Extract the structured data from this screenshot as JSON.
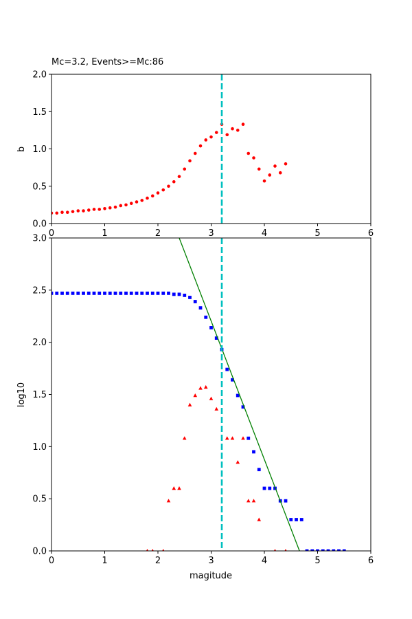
{
  "chart_data": [
    {
      "type": "scatter",
      "title": "Mc=3.2, Events>=Mc:86",
      "xlabel": "",
      "ylabel": "b",
      "xlim": [
        0,
        6
      ],
      "ylim": [
        0,
        2
      ],
      "xticks": [
        "0",
        "1",
        "2",
        "3",
        "4",
        "5",
        "6"
      ],
      "yticks": [
        "0.0",
        "0.5",
        "1.0",
        "1.5",
        "2.0"
      ],
      "series": [
        {
          "color": "#ff0000",
          "marker": "circle",
          "x": [
            0.0,
            0.1,
            0.2,
            0.3,
            0.4,
            0.5,
            0.6,
            0.7,
            0.8,
            0.9,
            1.0,
            1.1,
            1.2,
            1.3,
            1.4,
            1.5,
            1.6,
            1.7,
            1.8,
            1.9,
            2.0,
            2.1,
            2.2,
            2.3,
            2.4,
            2.5,
            2.6,
            2.7,
            2.8,
            2.9,
            3.0,
            3.1,
            3.2,
            3.3,
            3.4,
            3.5,
            3.6,
            3.7,
            3.8,
            3.9,
            4.0,
            4.1,
            4.2,
            4.3,
            4.4
          ],
          "y": [
            0.14,
            0.14,
            0.15,
            0.15,
            0.16,
            0.17,
            0.17,
            0.18,
            0.19,
            0.19,
            0.2,
            0.21,
            0.22,
            0.24,
            0.25,
            0.27,
            0.29,
            0.31,
            0.34,
            0.37,
            0.41,
            0.45,
            0.5,
            0.56,
            0.63,
            0.73,
            0.84,
            0.94,
            1.04,
            1.12,
            1.16,
            1.22,
            1.33,
            1.19,
            1.27,
            1.25,
            1.33,
            0.94,
            0.88,
            0.73,
            0.57,
            0.65,
            0.77,
            0.68,
            0.8
          ]
        }
      ],
      "vline": {
        "x": 3.2,
        "color": "#00bfbf"
      }
    },
    {
      "type": "scatter",
      "title": "",
      "xlabel": "magitude",
      "ylabel": "log10",
      "xlim": [
        0,
        6
      ],
      "ylim": [
        0,
        3
      ],
      "xticks": [
        "0",
        "1",
        "2",
        "3",
        "4",
        "5",
        "6"
      ],
      "yticks": [
        "0.0",
        "0.5",
        "1.0",
        "1.5",
        "2.0",
        "2.5",
        "3.0"
      ],
      "series": [
        {
          "color": "#0000ff",
          "marker": "square",
          "x": [
            0.0,
            0.1,
            0.2,
            0.3,
            0.4,
            0.5,
            0.6,
            0.7,
            0.8,
            0.9,
            1.0,
            1.1,
            1.2,
            1.3,
            1.4,
            1.5,
            1.6,
            1.7,
            1.8,
            1.9,
            2.0,
            2.1,
            2.2,
            2.3,
            2.4,
            2.5,
            2.6,
            2.7,
            2.8,
            2.9,
            3.0,
            3.1,
            3.2,
            3.3,
            3.4,
            3.5,
            3.6,
            3.7,
            3.8,
            3.9,
            4.0,
            4.1,
            4.2,
            4.3,
            4.4,
            4.5,
            4.6,
            4.7,
            4.8,
            4.9,
            5.0,
            5.1,
            5.2,
            5.3,
            5.4,
            5.5
          ],
          "y": [
            2.47,
            2.47,
            2.47,
            2.47,
            2.47,
            2.47,
            2.47,
            2.47,
            2.47,
            2.47,
            2.47,
            2.47,
            2.47,
            2.47,
            2.47,
            2.47,
            2.47,
            2.47,
            2.47,
            2.47,
            2.47,
            2.47,
            2.47,
            2.46,
            2.46,
            2.45,
            2.43,
            2.39,
            2.33,
            2.24,
            2.14,
            2.04,
            1.93,
            1.74,
            1.64,
            1.49,
            1.38,
            1.08,
            0.95,
            0.78,
            0.6,
            0.6,
            0.6,
            0.48,
            0.48,
            0.3,
            0.3,
            0.3,
            0.0,
            0.0,
            0.0,
            0.0,
            0.0,
            0.0,
            0.0,
            0.0
          ]
        },
        {
          "color": "#ff0000",
          "marker": "triangle",
          "x": [
            1.8,
            1.9,
            2.1,
            2.2,
            2.3,
            2.4,
            2.5,
            2.6,
            2.7,
            2.8,
            2.9,
            3.0,
            3.1,
            3.3,
            3.4,
            3.5,
            3.6,
            3.7,
            3.8,
            3.9,
            4.2,
            4.4
          ],
          "y": [
            0.0,
            0.0,
            0.0,
            0.48,
            0.6,
            0.6,
            1.08,
            1.4,
            1.49,
            1.56,
            1.57,
            1.46,
            1.36,
            1.08,
            1.08,
            0.85,
            1.08,
            0.48,
            0.48,
            0.3,
            0.0,
            0.0
          ]
        },
        {
          "color": "#008000",
          "marker": "line",
          "x": [
            2.4,
            4.66
          ],
          "y": [
            3.0,
            0.0
          ]
        }
      ],
      "vline": {
        "x": 3.2,
        "color": "#00bfbf"
      }
    }
  ]
}
